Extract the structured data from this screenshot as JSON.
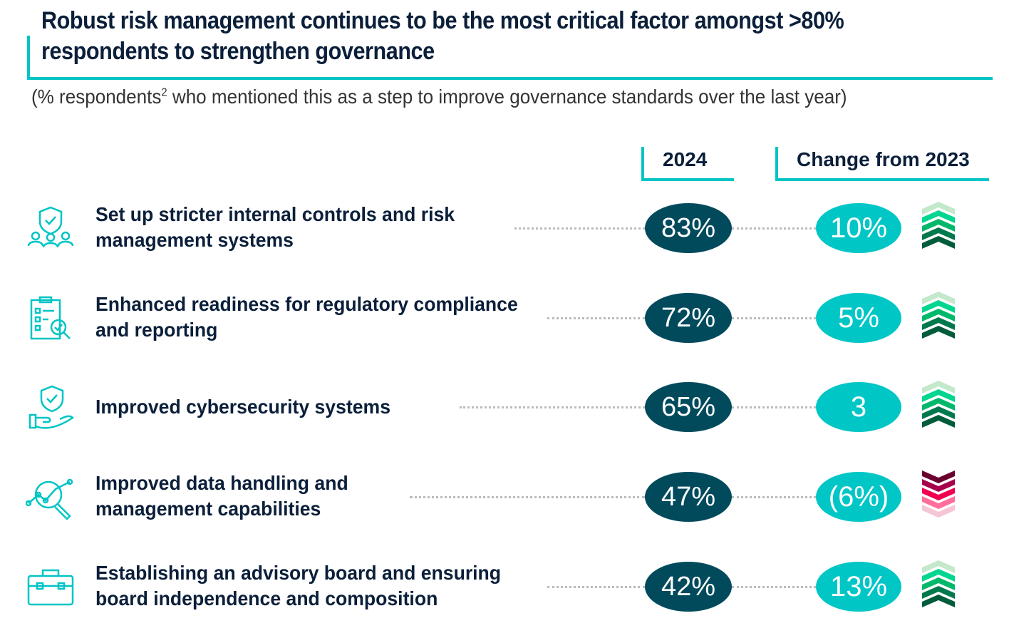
{
  "title": "Robust risk management continues to be the most critical factor amongst >80% respondents to strengthen governance",
  "subtitle_pre": "(% respondents",
  "subtitle_sup": "2",
  "subtitle_post": " who mentioned this as a step to improve governance standards over the last year)",
  "headers": {
    "year": "2024",
    "change": "Change from 2023"
  },
  "colors": {
    "accent": "#00c4c4",
    "dark": "#004a5c",
    "up": [
      "#c4e8cc",
      "#00d68f",
      "#00b86b",
      "#007a4d",
      "#005c3a"
    ],
    "down": [
      "#6b0030",
      "#a8004a",
      "#f0004f",
      "#ff6f9b",
      "#f5c6d4"
    ]
  },
  "chart_data": {
    "type": "table",
    "title": "Robust risk management continues to be the most critical factor amongst >80% respondents to strengthen governance",
    "columns": [
      "2024",
      "Change from 2023"
    ],
    "rows": [
      {
        "icon": "shield-people-icon",
        "line1": "Set up stricter internal controls and risk",
        "line2": "management systems",
        "value": "83%",
        "change": "10%",
        "direction": "up"
      },
      {
        "icon": "checklist-magnifier-icon",
        "line1": "Enhanced readiness for regulatory compliance",
        "line2": "and reporting",
        "value": "72%",
        "change": "5%",
        "direction": "up"
      },
      {
        "icon": "shield-hand-icon",
        "line1": "Improved cybersecurity systems",
        "line2": "",
        "value": "65%",
        "change": "3",
        "direction": "up"
      },
      {
        "icon": "data-magnifier-icon",
        "line1": "Improved data handling and",
        "line2": "management capabilities",
        "value": "47%",
        "change": "(6%)",
        "direction": "down"
      },
      {
        "icon": "briefcase-icon",
        "line1": "Establishing an advisory board and ensuring",
        "line2": "board independence and composition",
        "value": "42%",
        "change": "13%",
        "direction": "up"
      }
    ]
  }
}
